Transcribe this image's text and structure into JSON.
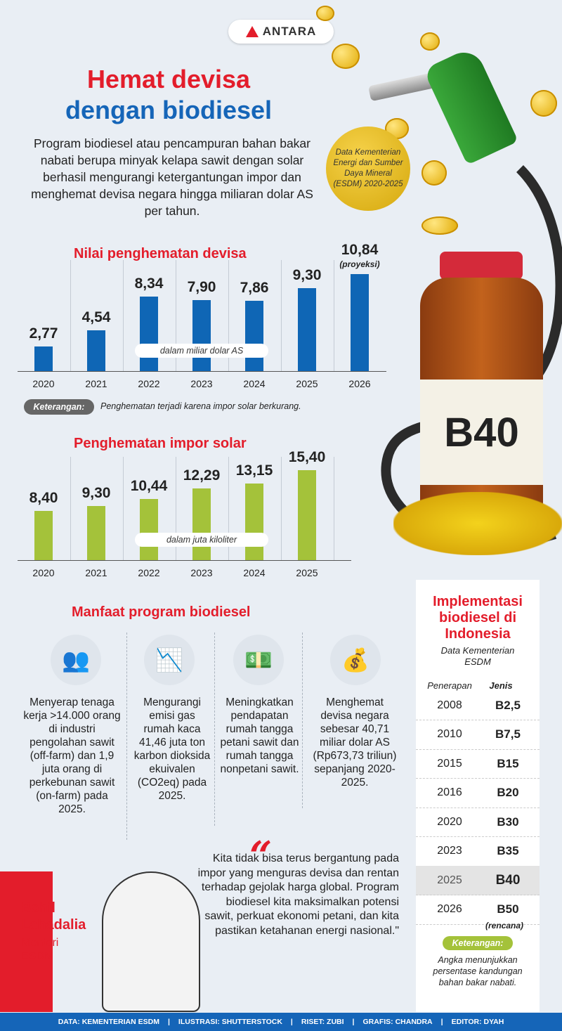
{
  "logo": "ANTARA",
  "title": {
    "line1": "Hemat devisa",
    "line2": "dengan biodiesel"
  },
  "intro": "Program biodiesel atau pencampuran bahan bakar nabati berupa minyak kelapa sawit dengan solar berhasil mengurangi ketergantungan impor dan menghemat devisa negara hingga miliaran dolar AS per tahun.",
  "source_drop": "Data Kementerian Energi dan Sumber Daya Mineral (ESDM) 2020-2025",
  "bottle_label": "B40",
  "chart_data": [
    {
      "type": "bar",
      "title": "Nilai penghematan devisa",
      "unit_note": "dalam miliar dolar AS",
      "categories": [
        "2020",
        "2021",
        "2022",
        "2023",
        "2024",
        "2025",
        "2026"
      ],
      "values": [
        2.77,
        4.54,
        8.34,
        7.9,
        7.86,
        9.3,
        10.84
      ],
      "value_labels": [
        "2,77",
        "4,54",
        "8,34",
        "7,90",
        "7,86",
        "9,30",
        "10,84"
      ],
      "annotation": "(proyeksi)",
      "color": "#0f66b5",
      "ylim": [
        0,
        11
      ]
    },
    {
      "type": "bar",
      "title": "Penghematan impor solar",
      "unit_note": "dalam juta kiloliter",
      "categories": [
        "2020",
        "2021",
        "2022",
        "2023",
        "2024",
        "2025"
      ],
      "values": [
        8.4,
        9.3,
        10.44,
        12.29,
        13.15,
        15.4
      ],
      "value_labels": [
        "8,40",
        "9,30",
        "10,44",
        "12,29",
        "13,15",
        "15,40"
      ],
      "color": "#a4c23a",
      "ylim": [
        0,
        16
      ]
    }
  ],
  "keterangan1": {
    "label": "Keterangan:",
    "text": "Penghematan terjadi karena impor solar berkurang."
  },
  "benefits": {
    "title": "Manfaat program biodiesel",
    "items": [
      {
        "icon": "workers-icon",
        "text": "Menyerap tenaga kerja >14.000 orang di industri pengolahan sawit (off-farm) dan 1,9 juta orang di perkebunan sawit (on-farm) pada 2025."
      },
      {
        "icon": "emission-chart-icon",
        "text": "Mengurangi emisi gas rumah kaca 41,46 juta ton karbon dioksida ekuivalen (CO2eq) pada 2025."
      },
      {
        "icon": "income-growth-icon",
        "text": "Meningkatkan pendapatan rumah tangga petani sawit dan rumah tangga nonpetani sawit."
      },
      {
        "icon": "money-savings-icon",
        "text": "Menghemat devisa negara sebesar 40,71 miliar dolar AS (Rp673,73 triliun) sepanjang 2020-2025."
      }
    ]
  },
  "implementation": {
    "title": "Implementasi biodiesel di Indonesia",
    "source": "Data Kementerian ESDM",
    "col_year": "Penerapan",
    "col_type": "Jenis",
    "rows": [
      {
        "year": "2008",
        "type": "B2,5"
      },
      {
        "year": "2010",
        "type": "B7,5"
      },
      {
        "year": "2015",
        "type": "B15"
      },
      {
        "year": "2016",
        "type": "B20"
      },
      {
        "year": "2020",
        "type": "B30"
      },
      {
        "year": "2023",
        "type": "B35"
      },
      {
        "year": "2025",
        "type": "B40"
      },
      {
        "year": "2026",
        "type": "B50"
      }
    ],
    "plan_note": "(rencana)",
    "ket_label": "Keterangan:",
    "ket_text": "Angka menunjukkan persentase kandungan bahan bakar nabati."
  },
  "person": {
    "name": "Bahil Lahadalia",
    "role": "Menteri ESDM"
  },
  "quote": "Kita tidak bisa terus bergantung pada impor yang menguras devisa dan rentan terhadap gejolak harga global. Program biodiesel kita maksimalkan potensi sawit, perkuat ekonomi petani, dan kita pastikan ketahanan energi nasional.\"",
  "footer": [
    "DATA: KEMENTERIAN ESDM",
    "ILUSTRASI: SHUTTERSTOCK",
    "RISET: ZUBI",
    "GRAFIS: CHANDRA",
    "EDITOR: DYAH"
  ]
}
